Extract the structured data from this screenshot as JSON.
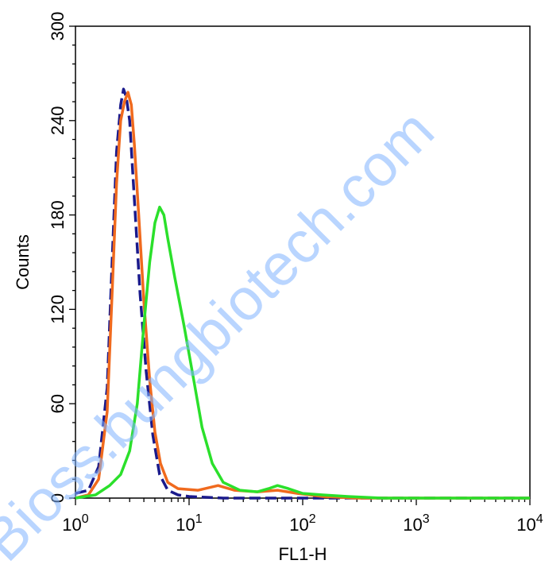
{
  "chart_data": {
    "type": "line",
    "xlabel": "FL1-H",
    "ylabel": "Counts",
    "x_scale": "log",
    "xlim": [
      1,
      10000
    ],
    "ylim": [
      0,
      300
    ],
    "grid": false,
    "legend": "none",
    "x_ticks": [
      {
        "value": 1,
        "base": "10",
        "exp": "0"
      },
      {
        "value": 10,
        "base": "10",
        "exp": "1"
      },
      {
        "value": 100,
        "base": "10",
        "exp": "2"
      },
      {
        "value": 1000,
        "base": "10",
        "exp": "3"
      },
      {
        "value": 10000,
        "base": "10",
        "exp": "4"
      }
    ],
    "y_ticks": [
      {
        "value": 0,
        "label": "0"
      },
      {
        "value": 60,
        "label": "60"
      },
      {
        "value": 120,
        "label": "120"
      },
      {
        "value": 180,
        "label": "180"
      },
      {
        "value": 240,
        "label": "240"
      },
      {
        "value": 300,
        "label": "300"
      }
    ],
    "series": [
      {
        "color": "#1a1a8c",
        "style": "dashed",
        "points": [
          [
            1.0,
            3
          ],
          [
            1.3,
            5
          ],
          [
            1.6,
            20
          ],
          [
            1.9,
            70
          ],
          [
            2.1,
            150
          ],
          [
            2.3,
            220
          ],
          [
            2.5,
            250
          ],
          [
            2.65,
            260
          ],
          [
            2.8,
            255
          ],
          [
            3.0,
            240
          ],
          [
            3.3,
            190
          ],
          [
            3.7,
            130
          ],
          [
            4.2,
            80
          ],
          [
            4.8,
            40
          ],
          [
            5.5,
            15
          ],
          [
            6.5,
            5
          ],
          [
            8,
            2
          ],
          [
            10,
            1
          ],
          [
            20,
            0
          ],
          [
            10000,
            0
          ]
        ]
      },
      {
        "color": "#f06a1e",
        "style": "solid",
        "points": [
          [
            1.0,
            0
          ],
          [
            1.3,
            2
          ],
          [
            1.6,
            12
          ],
          [
            1.9,
            55
          ],
          [
            2.1,
            130
          ],
          [
            2.3,
            200
          ],
          [
            2.5,
            240
          ],
          [
            2.7,
            252
          ],
          [
            2.9,
            258
          ],
          [
            3.1,
            250
          ],
          [
            3.3,
            225
          ],
          [
            3.6,
            180
          ],
          [
            4.0,
            125
          ],
          [
            4.5,
            75
          ],
          [
            5.0,
            42
          ],
          [
            5.6,
            22
          ],
          [
            6.5,
            10
          ],
          [
            8,
            6
          ],
          [
            12,
            5
          ],
          [
            18,
            8
          ],
          [
            25,
            5
          ],
          [
            40,
            4
          ],
          [
            60,
            5
          ],
          [
            90,
            3
          ],
          [
            150,
            1
          ],
          [
            300,
            0
          ],
          [
            1000,
            0
          ],
          [
            10000,
            0
          ]
        ]
      },
      {
        "color": "#2be02b",
        "style": "solid",
        "points": [
          [
            1.0,
            0
          ],
          [
            1.5,
            2
          ],
          [
            2.0,
            8
          ],
          [
            2.5,
            15
          ],
          [
            3.0,
            30
          ],
          [
            3.5,
            60
          ],
          [
            4.0,
            110
          ],
          [
            4.5,
            150
          ],
          [
            5.0,
            175
          ],
          [
            5.5,
            185
          ],
          [
            6.0,
            180
          ],
          [
            6.5,
            165
          ],
          [
            7.5,
            140
          ],
          [
            9,
            110
          ],
          [
            11,
            75
          ],
          [
            13,
            45
          ],
          [
            16,
            22
          ],
          [
            20,
            10
          ],
          [
            28,
            5
          ],
          [
            40,
            4
          ],
          [
            50,
            6
          ],
          [
            60,
            8
          ],
          [
            75,
            6
          ],
          [
            100,
            3
          ],
          [
            150,
            2
          ],
          [
            250,
            1
          ],
          [
            500,
            0
          ],
          [
            10000,
            0
          ]
        ]
      }
    ]
  },
  "watermark": {
    "text": "Bioss.bungbiotech.com",
    "color": "#7fb2ff"
  }
}
